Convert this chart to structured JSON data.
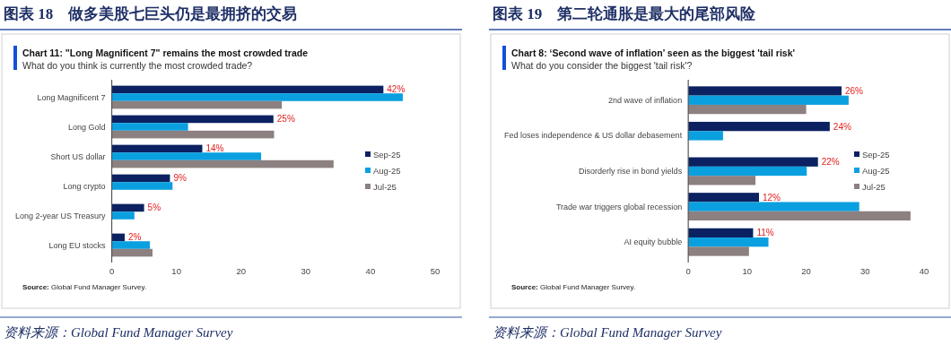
{
  "chart_data": [
    {
      "type": "bar",
      "orientation": "horizontal",
      "title": "图表 18　做多美股七巨头仍是最拥挤的交易",
      "subtitle": "Chart 11: \"Long Magnificent 7\" remains the most crowded trade",
      "annotations": [
        "What do you think is currently the most crowded trade?",
        "Source: Global Fund Manager Survey.",
        "资料来源：Global Fund Manager Survey"
      ],
      "categories": [
        "Long Magnificent 7",
        "Long Gold",
        "Short US dollar",
        "Long crypto",
        "Long 2-year US Treasury",
        "Long EU stocks"
      ],
      "series": [
        {
          "name": "Sep-25",
          "color": "#0b2161",
          "values": [
            42,
            25,
            14,
            9,
            5,
            2
          ],
          "value_labels": [
            "42%",
            "25%",
            "14%",
            "9%",
            "5%",
            "2%"
          ]
        },
        {
          "name": "Aug-25",
          "color": "#0aa0e0",
          "values": [
            45,
            11.8,
            23.1,
            9.4,
            3.5,
            5.9
          ]
        },
        {
          "name": "Jul-25",
          "color": "#8c8080",
          "values": [
            26.3,
            25.1,
            34.3,
            null,
            null,
            6.3
          ]
        }
      ],
      "xlim": [
        0,
        50
      ],
      "xticks": [
        0,
        10,
        20,
        30,
        40,
        50
      ],
      "legend": "right"
    },
    {
      "type": "bar",
      "orientation": "horizontal",
      "title": "图表 19　第二轮通胀是最大的尾部风险",
      "subtitle": "Chart 8: ‘Second wave of inflation’ seen as the biggest 'tail risk'",
      "annotations": [
        "What do you consider the biggest 'tail risk'?",
        "Source: Global Fund Manager Survey.",
        "资料来源：Global Fund Manager Survey"
      ],
      "categories": [
        "2nd wave of inflation",
        "Fed loses independence & US dollar debasement",
        "Disorderly rise in bond yields",
        "Trade war triggers global recession",
        "AI equity bubble"
      ],
      "series": [
        {
          "name": "Sep-25",
          "color": "#0b2161",
          "values": [
            26,
            24,
            22,
            12,
            11
          ],
          "value_labels": [
            "26%",
            "24%",
            "22%",
            "12%",
            "11%"
          ]
        },
        {
          "name": "Aug-25",
          "color": "#0aa0e0",
          "values": [
            27.2,
            5.9,
            20.1,
            29,
            13.6
          ]
        },
        {
          "name": "Jul-25",
          "color": "#8c8080",
          "values": [
            20,
            null,
            11.4,
            37.7,
            10.3
          ]
        }
      ],
      "xlim": [
        0,
        40
      ],
      "xticks": [
        0,
        10,
        20,
        30,
        40
      ],
      "legend": "right"
    }
  ]
}
